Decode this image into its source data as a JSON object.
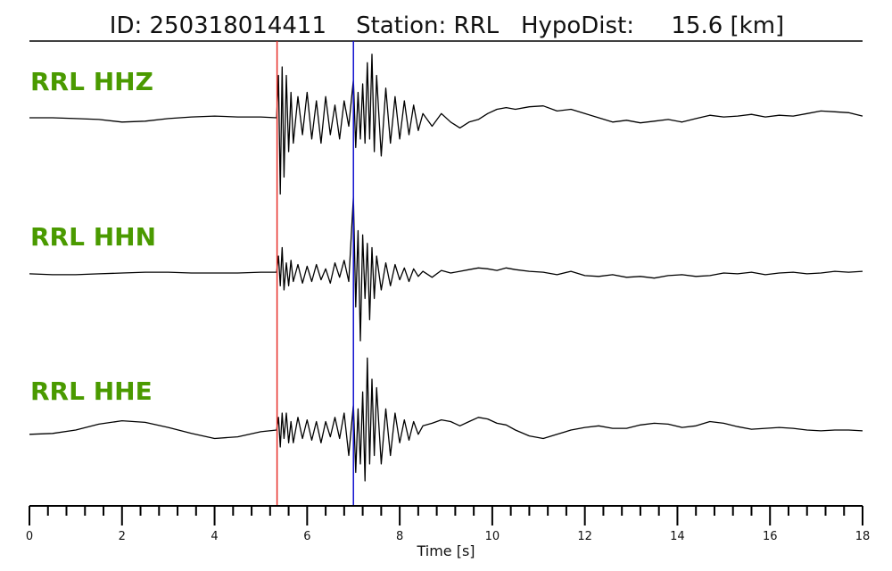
{
  "header": {
    "title": "ID: 250318014411    Station: RRL   HypoDist:     15.6 [km]"
  },
  "colors": {
    "label": "#4a9a00",
    "p_pick": "#e8302a",
    "s_pick": "#1010d0",
    "trace": "#000000",
    "axis": "#000000"
  },
  "chart_data": {
    "type": "line",
    "title": "ID: 250318014411    Station: RRL   HypoDist:     15.6 [km]",
    "xlabel": "Time [s]",
    "ylabel": "",
    "xlim": [
      0,
      18
    ],
    "x_ticks": [
      0,
      2,
      4,
      6,
      8,
      10,
      12,
      14,
      16,
      18
    ],
    "x_tick_labels": [
      "0",
      "2",
      "4",
      "6",
      "8",
      "10",
      "12",
      "14",
      "16",
      "18"
    ],
    "x_minor_step": 0.4,
    "grid": false,
    "picks": [
      {
        "phase": "P",
        "time": 5.35,
        "color": "#e8302a"
      },
      {
        "phase": "S",
        "time": 7.0,
        "color": "#1010d0"
      }
    ],
    "series": [
      {
        "name": "RRL HHZ",
        "x": [
          0,
          0.5,
          1.0,
          1.5,
          2.0,
          2.5,
          3.0,
          3.5,
          4.0,
          4.5,
          5.0,
          5.34,
          5.38,
          5.42,
          5.46,
          5.5,
          5.55,
          5.6,
          5.65,
          5.7,
          5.8,
          5.9,
          6.0,
          6.1,
          6.2,
          6.3,
          6.4,
          6.5,
          6.6,
          6.7,
          6.8,
          6.9,
          7.0,
          7.05,
          7.1,
          7.15,
          7.2,
          7.25,
          7.3,
          7.35,
          7.4,
          7.45,
          7.5,
          7.6,
          7.7,
          7.8,
          7.9,
          8.0,
          8.1,
          8.2,
          8.3,
          8.4,
          8.5,
          8.7,
          8.9,
          9.1,
          9.3,
          9.5,
          9.7,
          9.9,
          10.1,
          10.3,
          10.5,
          10.8,
          11.1,
          11.4,
          11.7,
          12.0,
          12.3,
          12.6,
          12.9,
          13.2,
          13.5,
          13.8,
          14.1,
          14.4,
          14.7,
          15.0,
          15.3,
          15.6,
          15.9,
          16.2,
          16.5,
          16.8,
          17.1,
          17.4,
          17.7,
          18.0
        ],
        "values": [
          0,
          0,
          -0.01,
          -0.02,
          -0.05,
          -0.04,
          -0.01,
          0.01,
          0.02,
          0.01,
          0.01,
          0.0,
          0.5,
          -0.9,
          0.6,
          -0.7,
          0.5,
          -0.4,
          0.3,
          -0.3,
          0.25,
          -0.2,
          0.3,
          -0.25,
          0.2,
          -0.3,
          0.25,
          -0.2,
          0.15,
          -0.25,
          0.2,
          -0.1,
          0.45,
          -0.35,
          0.3,
          -0.25,
          0.4,
          -0.3,
          0.65,
          -0.25,
          0.75,
          -0.4,
          0.5,
          -0.45,
          0.35,
          -0.3,
          0.25,
          -0.25,
          0.2,
          -0.2,
          0.15,
          -0.15,
          0.05,
          -0.1,
          0.05,
          -0.05,
          -0.12,
          -0.05,
          -0.02,
          0.05,
          0.1,
          0.12,
          0.1,
          0.13,
          0.14,
          0.08,
          0.1,
          0.05,
          0.0,
          -0.05,
          -0.03,
          -0.06,
          -0.04,
          -0.02,
          -0.05,
          -0.01,
          0.03,
          0.01,
          0.02,
          0.04,
          0.01,
          0.03,
          0.02,
          0.05,
          0.08,
          0.07,
          0.06,
          0.02
        ]
      },
      {
        "name": "RRL HHN",
        "x": [
          0,
          0.5,
          1.0,
          1.5,
          2.0,
          2.5,
          3.0,
          3.5,
          4.0,
          4.5,
          5.0,
          5.34,
          5.38,
          5.42,
          5.46,
          5.5,
          5.55,
          5.6,
          5.65,
          5.7,
          5.8,
          5.9,
          6.0,
          6.1,
          6.2,
          6.3,
          6.4,
          6.5,
          6.6,
          6.7,
          6.8,
          6.9,
          7.0,
          7.05,
          7.1,
          7.15,
          7.2,
          7.25,
          7.3,
          7.35,
          7.4,
          7.45,
          7.5,
          7.6,
          7.7,
          7.8,
          7.9,
          8.0,
          8.1,
          8.2,
          8.3,
          8.4,
          8.5,
          8.7,
          8.9,
          9.1,
          9.3,
          9.5,
          9.7,
          9.9,
          10.1,
          10.3,
          10.5,
          10.8,
          11.1,
          11.4,
          11.7,
          12.0,
          12.3,
          12.6,
          12.9,
          13.2,
          13.5,
          13.8,
          14.1,
          14.4,
          14.7,
          15.0,
          15.3,
          15.6,
          15.9,
          16.2,
          16.5,
          16.8,
          17.1,
          17.4,
          17.7,
          18.0
        ],
        "values": [
          -0.01,
          -0.02,
          -0.02,
          -0.01,
          0.0,
          0.01,
          0.01,
          0.0,
          0.0,
          0.0,
          0.01,
          0.01,
          0.2,
          -0.15,
          0.3,
          -0.2,
          0.12,
          -0.15,
          0.15,
          -0.1,
          0.1,
          -0.12,
          0.08,
          -0.1,
          0.1,
          -0.08,
          0.05,
          -0.12,
          0.12,
          -0.05,
          0.15,
          -0.1,
          0.9,
          -0.4,
          0.5,
          -0.8,
          0.45,
          -0.3,
          0.35,
          -0.55,
          0.3,
          -0.3,
          0.2,
          -0.2,
          0.12,
          -0.15,
          0.1,
          -0.08,
          0.06,
          -0.1,
          0.05,
          -0.04,
          0.02,
          -0.05,
          0.03,
          0.0,
          0.02,
          0.04,
          0.06,
          0.05,
          0.03,
          0.06,
          0.04,
          0.02,
          0.01,
          -0.02,
          0.02,
          -0.03,
          -0.04,
          -0.02,
          -0.05,
          -0.04,
          -0.06,
          -0.03,
          -0.02,
          -0.04,
          -0.03,
          0.0,
          -0.01,
          0.01,
          -0.02,
          0.0,
          0.01,
          -0.01,
          0.0,
          0.02,
          0.01,
          0.02
        ]
      },
      {
        "name": "RRL HHE",
        "x": [
          0,
          0.5,
          1.0,
          1.5,
          2.0,
          2.5,
          3.0,
          3.5,
          4.0,
          4.5,
          5.0,
          5.34,
          5.38,
          5.42,
          5.46,
          5.5,
          5.55,
          5.6,
          5.65,
          5.7,
          5.8,
          5.9,
          6.0,
          6.1,
          6.2,
          6.3,
          6.4,
          6.5,
          6.6,
          6.7,
          6.8,
          6.9,
          7.0,
          7.05,
          7.1,
          7.15,
          7.2,
          7.25,
          7.3,
          7.35,
          7.4,
          7.45,
          7.5,
          7.6,
          7.7,
          7.8,
          7.9,
          8.0,
          8.1,
          8.2,
          8.3,
          8.4,
          8.5,
          8.7,
          8.9,
          9.1,
          9.3,
          9.5,
          9.7,
          9.9,
          10.1,
          10.3,
          10.5,
          10.8,
          11.1,
          11.4,
          11.7,
          12.0,
          12.3,
          12.6,
          12.9,
          13.2,
          13.5,
          13.8,
          14.1,
          14.4,
          14.7,
          15.0,
          15.3,
          15.6,
          15.9,
          16.2,
          16.5,
          16.8,
          17.1,
          17.4,
          17.7,
          18.0
        ],
        "values": [
          -0.05,
          -0.04,
          0.0,
          0.07,
          0.11,
          0.09,
          0.03,
          -0.04,
          -0.1,
          -0.08,
          -0.02,
          0.0,
          0.15,
          -0.2,
          0.2,
          -0.1,
          0.2,
          -0.15,
          0.1,
          -0.15,
          0.15,
          -0.1,
          0.12,
          -0.12,
          0.1,
          -0.15,
          0.1,
          -0.08,
          0.15,
          -0.1,
          0.2,
          -0.3,
          0.3,
          -0.5,
          0.25,
          -0.4,
          0.45,
          -0.6,
          0.85,
          -0.4,
          0.6,
          -0.3,
          0.5,
          -0.4,
          0.25,
          -0.3,
          0.2,
          -0.15,
          0.12,
          -0.12,
          0.1,
          -0.05,
          0.05,
          0.08,
          0.12,
          0.1,
          0.05,
          0.1,
          0.15,
          0.13,
          0.08,
          0.06,
          0.0,
          -0.07,
          -0.1,
          -0.05,
          0.0,
          0.03,
          0.05,
          0.02,
          0.02,
          0.06,
          0.08,
          0.07,
          0.03,
          0.05,
          0.1,
          0.08,
          0.04,
          0.01,
          0.02,
          0.03,
          0.02,
          0.0,
          -0.01,
          0.0,
          0.0,
          -0.01
        ]
      }
    ]
  }
}
